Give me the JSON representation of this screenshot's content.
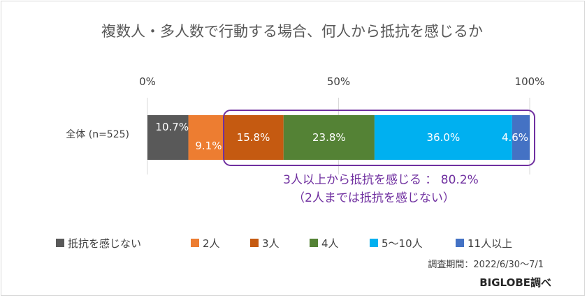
{
  "chart_data": {
    "type": "bar",
    "orientation": "horizontal",
    "stacked": "percent",
    "title": "複数人・多人数で行動する場合、何人から抵抗を感じるか",
    "x_ticks": [
      "0%",
      "50%",
      "100%"
    ],
    "xlim": [
      0,
      100
    ],
    "categories": [
      "全体 (n=525)"
    ],
    "series": [
      {
        "name": "抵抗を感じない",
        "values": [
          10.7
        ],
        "label": "10.7%",
        "color": "#595959"
      },
      {
        "name": "2人",
        "values": [
          9.1
        ],
        "label": "9.1%",
        "color": "#ed7d31"
      },
      {
        "name": "3人",
        "values": [
          15.8
        ],
        "label": "15.8%",
        "color": "#c55a11"
      },
      {
        "name": "4人",
        "values": [
          23.8
        ],
        "label": "23.8%",
        "color": "#548235"
      },
      {
        "name": "5〜10人",
        "values": [
          36.0
        ],
        "label": "36.0%",
        "color": "#00b0f0"
      },
      {
        "name": "11人以上",
        "values": [
          4.6
        ],
        "label": "4.6%",
        "color": "#4472c4"
      }
    ],
    "legend_position": "bottom",
    "gridlines": true,
    "annotation": {
      "line1": "3人以上から抵抗を感じる ： 80.2%",
      "line2": "（2人までは抵抗を感じない）",
      "color": "#7030a0"
    },
    "period": "調査期間：2022/6/30〜7/1",
    "credit": "BIGLOBE調べ"
  }
}
